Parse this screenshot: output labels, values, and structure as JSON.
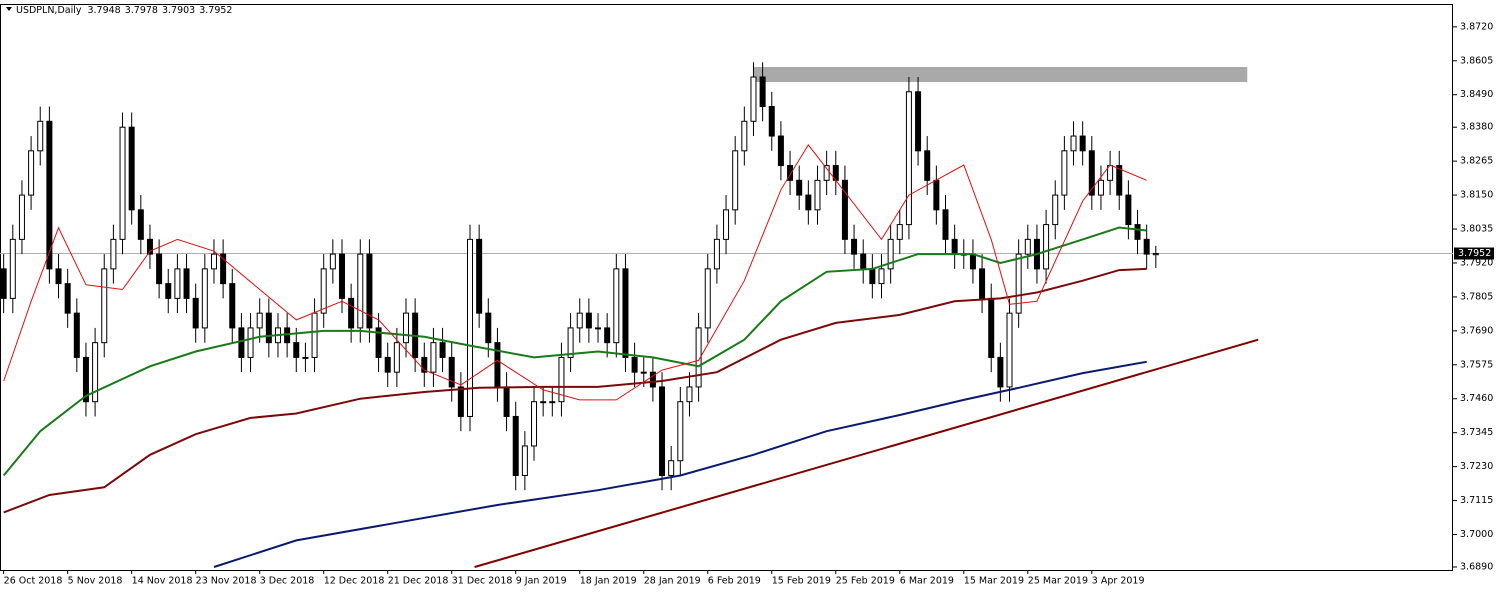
{
  "chart_data": {
    "type": "candlestick",
    "title": "USDPLN,Daily",
    "ylim": [
      3.6873,
      3.8794
    ],
    "xlim": [
      -0.4,
      158.5
    ],
    "yticks": [
      {
        "value": 3.872,
        "label": "3.8720"
      },
      {
        "value": 3.8605,
        "label": "3.8605"
      },
      {
        "value": 3.849,
        "label": "3.8490"
      },
      {
        "value": 3.838,
        "label": "3.8380"
      },
      {
        "value": 3.8265,
        "label": "3.8265"
      },
      {
        "value": 3.815,
        "label": "3.8150"
      },
      {
        "value": 3.8035,
        "label": "3.8035"
      },
      {
        "value": 3.792,
        "label": "3.7920"
      },
      {
        "value": 3.7805,
        "label": "3.7805"
      },
      {
        "value": 3.769,
        "label": "3.7690"
      },
      {
        "value": 3.7575,
        "label": "3.7575"
      },
      {
        "value": 3.746,
        "label": "3.7460"
      },
      {
        "value": 3.7345,
        "label": "3.7345"
      },
      {
        "value": 3.723,
        "label": "3.7230"
      },
      {
        "value": 3.7115,
        "label": "3.7115"
      },
      {
        "value": 3.7,
        "label": "3.7000"
      },
      {
        "value": 3.689,
        "label": "3.6890"
      }
    ],
    "xticks": [
      {
        "value": 0,
        "label": "26 Oct 2018"
      },
      {
        "value": 7,
        "label": "5 Nov 2018"
      },
      {
        "value": 14,
        "label": "14 Nov 2018"
      },
      {
        "value": 21,
        "label": "23 Nov 2018"
      },
      {
        "value": 28,
        "label": "3 Dec 2018"
      },
      {
        "value": 35,
        "label": "12 Dec 2018"
      },
      {
        "value": 42,
        "label": "21 Dec 2018"
      },
      {
        "value": 49,
        "label": "31 Dec 2018"
      },
      {
        "value": 56,
        "label": "9 Jan 2019"
      },
      {
        "value": 63,
        "label": "18 Jan 2019"
      },
      {
        "value": 70,
        "label": "28 Jan 2019"
      },
      {
        "value": 77,
        "label": "6 Feb 2019"
      },
      {
        "value": 84,
        "label": "15 Feb 2019"
      },
      {
        "value": 91,
        "label": "25 Feb 2019"
      },
      {
        "value": 98,
        "label": "6 Mar 2019"
      },
      {
        "value": 105,
        "label": "15 Mar 2019"
      },
      {
        "value": 112,
        "label": "25 Mar 2019"
      },
      {
        "value": 119,
        "label": "3 Apr 2019"
      }
    ],
    "up_color": "#ffffff",
    "down_color": "#000000",
    "ohlc": [
      [
        3.79,
        3.795,
        3.775,
        3.78
      ],
      [
        3.78,
        3.805,
        3.775,
        3.8
      ],
      [
        3.8,
        3.82,
        3.795,
        3.815
      ],
      [
        3.815,
        3.835,
        3.81,
        3.83
      ],
      [
        3.83,
        3.845,
        3.825,
        3.84
      ],
      [
        3.84,
        3.845,
        3.785,
        3.79
      ],
      [
        3.79,
        3.795,
        3.78,
        3.785
      ],
      [
        3.785,
        3.79,
        3.77,
        3.775
      ],
      [
        3.775,
        3.78,
        3.755,
        3.76
      ],
      [
        3.76,
        3.765,
        3.74,
        3.745
      ],
      [
        3.745,
        3.77,
        3.74,
        3.765
      ],
      [
        3.765,
        3.795,
        3.76,
        3.79
      ],
      [
        3.79,
        3.805,
        3.785,
        3.8
      ],
      [
        3.8,
        3.843,
        3.795,
        3.838
      ],
      [
        3.838,
        3.843,
        3.805,
        3.81
      ],
      [
        3.81,
        3.815,
        3.795,
        3.8
      ],
      [
        3.8,
        3.805,
        3.79,
        3.795
      ],
      [
        3.795,
        3.8,
        3.78,
        3.785
      ],
      [
        3.785,
        3.79,
        3.775,
        3.78
      ],
      [
        3.78,
        3.795,
        3.775,
        3.79
      ],
      [
        3.79,
        3.795,
        3.775,
        3.78
      ],
      [
        3.78,
        3.785,
        3.765,
        3.77
      ],
      [
        3.77,
        3.795,
        3.765,
        3.79
      ],
      [
        3.79,
        3.8,
        3.785,
        3.795
      ],
      [
        3.795,
        3.8,
        3.78,
        3.785
      ],
      [
        3.785,
        3.79,
        3.765,
        3.77
      ],
      [
        3.77,
        3.775,
        3.755,
        3.76
      ],
      [
        3.76,
        3.775,
        3.755,
        3.77
      ],
      [
        3.77,
        3.78,
        3.765,
        3.775
      ],
      [
        3.775,
        3.78,
        3.76,
        3.765
      ],
      [
        3.765,
        3.775,
        3.76,
        3.77
      ],
      [
        3.77,
        3.775,
        3.76,
        3.765
      ],
      [
        3.765,
        3.77,
        3.755,
        3.76
      ],
      [
        3.76,
        3.765,
        3.755,
        3.76
      ],
      [
        3.76,
        3.78,
        3.755,
        3.775
      ],
      [
        3.775,
        3.795,
        3.77,
        3.79
      ],
      [
        3.79,
        3.8,
        3.785,
        3.795
      ],
      [
        3.795,
        3.8,
        3.775,
        3.78
      ],
      [
        3.78,
        3.785,
        3.765,
        3.77
      ],
      [
        3.77,
        3.8,
        3.765,
        3.795
      ],
      [
        3.795,
        3.8,
        3.765,
        3.77
      ],
      [
        3.77,
        3.775,
        3.755,
        3.76
      ],
      [
        3.76,
        3.765,
        3.75,
        3.755
      ],
      [
        3.755,
        3.77,
        3.75,
        3.765
      ],
      [
        3.765,
        3.78,
        3.76,
        3.775
      ],
      [
        3.775,
        3.78,
        3.755,
        3.76
      ],
      [
        3.76,
        3.765,
        3.75,
        3.755
      ],
      [
        3.755,
        3.77,
        3.75,
        3.765
      ],
      [
        3.765,
        3.77,
        3.755,
        3.76
      ],
      [
        3.76,
        3.765,
        3.745,
        3.75
      ],
      [
        3.75,
        3.755,
        3.735,
        3.74
      ],
      [
        3.74,
        3.805,
        3.735,
        3.8
      ],
      [
        3.8,
        3.805,
        3.77,
        3.775
      ],
      [
        3.775,
        3.78,
        3.76,
        3.765
      ],
      [
        3.765,
        3.77,
        3.745,
        3.75
      ],
      [
        3.75,
        3.755,
        3.735,
        3.74
      ],
      [
        3.74,
        3.745,
        3.715,
        3.72
      ],
      [
        3.72,
        3.735,
        3.715,
        3.73
      ],
      [
        3.73,
        3.75,
        3.725,
        3.745
      ],
      [
        3.745,
        3.75,
        3.74,
        3.745
      ],
      [
        3.745,
        3.75,
        3.74,
        3.745
      ],
      [
        3.745,
        3.765,
        3.74,
        3.76
      ],
      [
        3.76,
        3.775,
        3.755,
        3.77
      ],
      [
        3.77,
        3.78,
        3.765,
        3.775
      ],
      [
        3.775,
        3.78,
        3.765,
        3.77
      ],
      [
        3.77,
        3.775,
        3.765,
        3.77
      ],
      [
        3.77,
        3.775,
        3.76,
        3.765
      ],
      [
        3.765,
        3.795,
        3.76,
        3.79
      ],
      [
        3.79,
        3.795,
        3.755,
        3.76
      ],
      [
        3.76,
        3.765,
        3.75,
        3.755
      ],
      [
        3.755,
        3.76,
        3.75,
        3.755
      ],
      [
        3.755,
        3.76,
        3.745,
        3.75
      ],
      [
        3.75,
        3.755,
        3.715,
        3.72
      ],
      [
        3.72,
        3.73,
        3.715,
        3.725
      ],
      [
        3.725,
        3.75,
        3.72,
        3.745
      ],
      [
        3.745,
        3.755,
        3.74,
        3.75
      ],
      [
        3.75,
        3.775,
        3.745,
        3.77
      ],
      [
        3.77,
        3.795,
        3.765,
        3.79
      ],
      [
        3.79,
        3.805,
        3.785,
        3.8
      ],
      [
        3.8,
        3.815,
        3.795,
        3.81
      ],
      [
        3.81,
        3.835,
        3.805,
        3.83
      ],
      [
        3.83,
        3.845,
        3.825,
        3.84
      ],
      [
        3.84,
        3.86,
        3.835,
        3.855
      ],
      [
        3.855,
        3.86,
        3.84,
        3.845
      ],
      [
        3.845,
        3.85,
        3.83,
        3.835
      ],
      [
        3.835,
        3.84,
        3.82,
        3.825
      ],
      [
        3.825,
        3.83,
        3.815,
        3.82
      ],
      [
        3.82,
        3.825,
        3.81,
        3.815
      ],
      [
        3.815,
        3.82,
        3.805,
        3.81
      ],
      [
        3.81,
        3.825,
        3.805,
        3.82
      ],
      [
        3.82,
        3.83,
        3.815,
        3.825
      ],
      [
        3.825,
        3.83,
        3.815,
        3.82
      ],
      [
        3.82,
        3.825,
        3.795,
        3.8
      ],
      [
        3.8,
        3.805,
        3.79,
        3.795
      ],
      [
        3.795,
        3.8,
        3.785,
        3.79
      ],
      [
        3.79,
        3.795,
        3.78,
        3.785
      ],
      [
        3.785,
        3.795,
        3.78,
        3.79
      ],
      [
        3.79,
        3.805,
        3.785,
        3.8
      ],
      [
        3.8,
        3.81,
        3.795,
        3.805
      ],
      [
        3.805,
        3.855,
        3.8,
        3.85
      ],
      [
        3.85,
        3.855,
        3.825,
        3.83
      ],
      [
        3.83,
        3.835,
        3.815,
        3.82
      ],
      [
        3.82,
        3.825,
        3.805,
        3.81
      ],
      [
        3.81,
        3.815,
        3.795,
        3.8
      ],
      [
        3.8,
        3.805,
        3.79,
        3.795
      ],
      [
        3.795,
        3.8,
        3.79,
        3.795
      ],
      [
        3.795,
        3.8,
        3.785,
        3.79
      ],
      [
        3.79,
        3.795,
        3.775,
        3.78
      ],
      [
        3.78,
        3.785,
        3.755,
        3.76
      ],
      [
        3.76,
        3.765,
        3.745,
        3.75
      ],
      [
        3.75,
        3.78,
        3.745,
        3.775
      ],
      [
        3.775,
        3.8,
        3.77,
        3.795
      ],
      [
        3.795,
        3.805,
        3.79,
        3.8
      ],
      [
        3.8,
        3.805,
        3.785,
        3.79
      ],
      [
        3.79,
        3.81,
        3.785,
        3.805
      ],
      [
        3.805,
        3.82,
        3.8,
        3.815
      ],
      [
        3.815,
        3.835,
        3.81,
        3.83
      ],
      [
        3.83,
        3.84,
        3.825,
        3.835
      ],
      [
        3.835,
        3.84,
        3.825,
        3.83
      ],
      [
        3.83,
        3.835,
        3.81,
        3.815
      ],
      [
        3.815,
        3.825,
        3.81,
        3.82
      ],
      [
        3.82,
        3.83,
        3.815,
        3.825
      ],
      [
        3.825,
        3.83,
        3.81,
        3.815
      ],
      [
        3.815,
        3.82,
        3.8,
        3.805
      ],
      [
        3.805,
        3.81,
        3.795,
        3.8
      ],
      [
        3.8,
        3.805,
        3.79,
        3.795
      ],
      [
        3.7948,
        3.7978,
        3.7903,
        3.7952
      ]
    ],
    "lines": [
      {
        "color": "#1a7a1a",
        "width": 2,
        "x": [
          0,
          4,
          9,
          16,
          21,
          28,
          35,
          39,
          46,
          51,
          58,
          65,
          71,
          76,
          81,
          85,
          90,
          95,
          100,
          106,
          109,
          113,
          118,
          122,
          125
        ],
        "values": [
          3.72,
          3.735,
          3.747,
          3.757,
          3.762,
          3.767,
          3.769,
          3.769,
          3.767,
          3.764,
          3.76,
          3.762,
          3.76,
          3.757,
          3.766,
          3.779,
          3.789,
          3.79,
          3.795,
          3.795,
          3.792,
          3.795,
          3.8,
          3.804,
          3.803
        ]
      },
      {
        "color": "#7a0a0a",
        "width": 2,
        "x": [
          0,
          5,
          11,
          16,
          21,
          27,
          32,
          39,
          46,
          52,
          59,
          65,
          72,
          78,
          85,
          91,
          98,
          104,
          109,
          113,
          118,
          122,
          125
        ],
        "values": [
          3.7075,
          3.7134,
          3.716,
          3.727,
          3.734,
          3.7395,
          3.741,
          3.746,
          3.7483,
          3.7497,
          3.75,
          3.75,
          3.752,
          3.755,
          3.766,
          3.7717,
          3.7744,
          3.779,
          3.78,
          3.782,
          3.786,
          3.7896,
          3.79
        ]
      },
      {
        "color": "#0a1a6e",
        "width": 2,
        "x": [
          23,
          32,
          43,
          54,
          65,
          74,
          82,
          90,
          98,
          105,
          111,
          118,
          125
        ],
        "values": [
          3.689,
          3.698,
          3.704,
          3.71,
          3.715,
          3.72,
          3.727,
          3.735,
          3.7405,
          3.7456,
          3.7497,
          3.7547,
          3.7585
        ]
      },
      {
        "color": "#e01010",
        "width": 1,
        "x": [
          0,
          3,
          6,
          9,
          13,
          16,
          19,
          23,
          28,
          32,
          37,
          41,
          46,
          50,
          54,
          59,
          63,
          67,
          72,
          76,
          81,
          85,
          88,
          91,
          96,
          99,
          105,
          108,
          110,
          113,
          118,
          121,
          125
        ],
        "values": [
          3.752,
          3.779,
          3.8039,
          3.7846,
          3.783,
          3.796,
          3.8,
          3.796,
          3.783,
          3.7727,
          3.779,
          3.7727,
          3.7557,
          3.7507,
          3.759,
          3.749,
          3.7456,
          3.7456,
          3.7557,
          3.759,
          3.786,
          3.8168,
          3.832,
          3.82,
          3.8,
          3.815,
          3.8252,
          3.8,
          3.778,
          3.779,
          3.813,
          3.8252,
          3.82
        ]
      },
      {
        "color": "#800000",
        "width": 2,
        "x": [
          51.5,
          137.2
        ],
        "values": [
          3.689,
          3.766
        ]
      }
    ],
    "zone": {
      "color": "#a9a9a9",
      "x": [
        82,
        136
      ],
      "values": [
        3.8533,
        3.8584
      ]
    }
  }
}
